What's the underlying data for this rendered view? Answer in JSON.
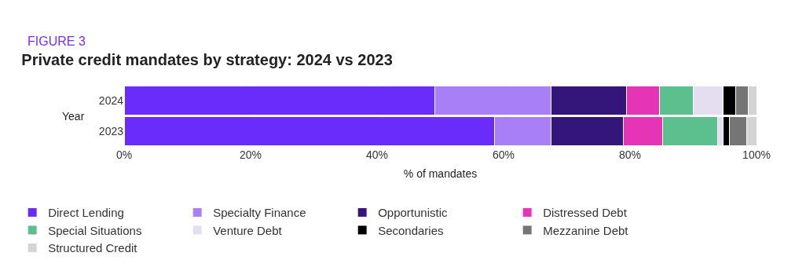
{
  "chart_data": {
    "type": "bar",
    "orientation": "horizontal",
    "stacked": true,
    "title": "Private credit mandates by strategy: 2024 vs 2023",
    "xlabel": "% of mandates",
    "ylabel": "Year",
    "annotations": [
      "FIGURE 3"
    ],
    "categories": [
      "2024",
      "2023"
    ],
    "series": [
      {
        "name": "Direct Lending",
        "color": "#6a2cfb",
        "values": [
          49.1,
          58.6
        ]
      },
      {
        "name": "Specialty Finance",
        "color": "#a87ff7",
        "values": [
          18.4,
          8.9
        ]
      },
      {
        "name": "Opportunistic",
        "color": "#34157a",
        "values": [
          11.9,
          11.5
        ]
      },
      {
        "name": "Distressed Debt",
        "color": "#e535b6",
        "values": [
          5.3,
          6.1
        ]
      },
      {
        "name": "Special Situations",
        "color": "#5cc08e",
        "values": [
          5.3,
          8.7
        ]
      },
      {
        "name": "Venture Debt",
        "color": "#e3dff0",
        "values": [
          4.7,
          0.9
        ]
      },
      {
        "name": "Secondaries",
        "color": "#000000",
        "values": [
          2.0,
          1.0
        ]
      },
      {
        "name": "Mezzanine Debt",
        "color": "#757575",
        "values": [
          2.0,
          2.8
        ]
      },
      {
        "name": "Structured Credit",
        "color": "#d4d4d4",
        "values": [
          1.3,
          1.5
        ]
      }
    ],
    "xlim": [
      0,
      100
    ],
    "xticks": [
      {
        "value": 0,
        "label": "0%"
      },
      {
        "value": 20,
        "label": "20%"
      },
      {
        "value": 40,
        "label": "40%"
      },
      {
        "value": 60,
        "label": "60%"
      },
      {
        "value": 80,
        "label": "80%"
      },
      {
        "value": 100,
        "label": "100%"
      }
    ],
    "grid": "x",
    "legend": "bottom"
  }
}
